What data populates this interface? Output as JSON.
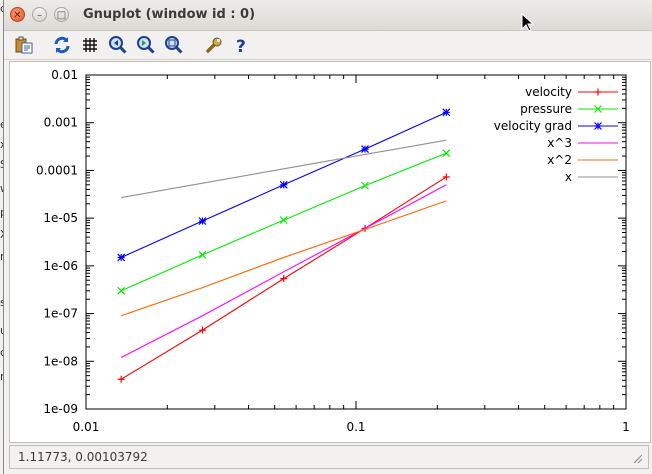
{
  "window": {
    "title": "Gnuplot (window id : 0)"
  },
  "toolbar": {
    "buttons": [
      {
        "name": "copy-to-clipboard-button",
        "icon": "clipboard-icon"
      },
      {
        "name": "replot-button",
        "icon": "refresh-icon"
      },
      {
        "name": "toggle-grid-button",
        "icon": "grid-icon"
      },
      {
        "name": "previous-zoom-button",
        "icon": "zoom-previous-icon"
      },
      {
        "name": "next-zoom-button",
        "icon": "zoom-next-icon"
      },
      {
        "name": "autoscale-button",
        "icon": "zoom-autoscale-icon"
      },
      {
        "name": "options-button",
        "icon": "wrench-icon"
      },
      {
        "name": "help-button",
        "icon": "help-icon"
      }
    ]
  },
  "status": {
    "text": "1.11773, 0.00103792"
  },
  "chart_data": {
    "type": "line",
    "x_scale": "log",
    "y_scale": "log",
    "xlim": [
      0.01,
      1
    ],
    "ylim": [
      1e-09,
      0.01
    ],
    "x_ticks": [
      {
        "value": 0.01,
        "label": "0.01"
      },
      {
        "value": 0.1,
        "label": "0.1"
      },
      {
        "value": 1,
        "label": "1"
      }
    ],
    "y_ticks": [
      {
        "value": 0.01,
        "label": "0.01"
      },
      {
        "value": 0.001,
        "label": "0.001"
      },
      {
        "value": 0.0001,
        "label": "0.0001"
      },
      {
        "value": 1e-05,
        "label": "1e-05"
      },
      {
        "value": 1e-06,
        "label": "1e-06"
      },
      {
        "value": 1e-07,
        "label": "1e-07"
      },
      {
        "value": 1e-08,
        "label": "1e-08"
      },
      {
        "value": 1e-09,
        "label": "1e-09"
      }
    ],
    "grid": false,
    "legend_position": "top-right",
    "x": [
      0.0135,
      0.027,
      0.054,
      0.108,
      0.216
    ],
    "series": [
      {
        "name": "velocity",
        "color": "#ff0000",
        "marker": "plus",
        "values": [
          4.2e-09,
          4.5e-08,
          5.4e-07,
          6.1e-06,
          7.3e-05
        ]
      },
      {
        "name": "pressure",
        "color": "#00ee00",
        "marker": "cross",
        "values": [
          3e-07,
          1.7e-06,
          9.1e-06,
          4.8e-05,
          0.00023
        ]
      },
      {
        "name": "velocity grad",
        "color": "#0000ff",
        "marker": "star",
        "values": [
          1.5e-06,
          8.7e-06,
          5e-05,
          0.00028,
          0.00165
        ]
      },
      {
        "name": "x^3",
        "color": "#ff00ff",
        "marker": "none",
        "values": [
          1.2e-08,
          9e-08,
          7.5e-07,
          6.1e-06,
          5e-05
        ]
      },
      {
        "name": "x^2",
        "color": "#ff6600",
        "marker": "none",
        "values": [
          9e-08,
          3.5e-07,
          1.5e-06,
          5.8e-06,
          2.3e-05
        ]
      },
      {
        "name": "x",
        "color": "#909090",
        "marker": "none",
        "values": [
          2.7e-05,
          5.4e-05,
          0.000108,
          0.000216,
          0.00043
        ]
      }
    ]
  }
}
